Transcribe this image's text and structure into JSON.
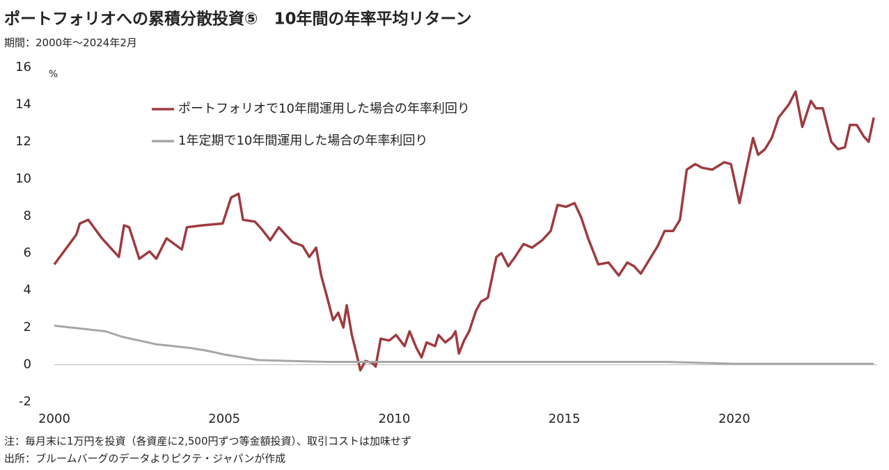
{
  "chart_data": {
    "type": "line",
    "title": "ポートフォリオへの累積分散投資⑤　10年間の年率平均リターン",
    "subtitle": "期間：2000年～2024年2月",
    "y_unit": "%",
    "notes": [
      "注：毎月末に1万円を投資（各資産に2,500円ずつ等金額投資）、取引コストは加味せず",
      "出所：ブルームバーグのデータよりピクテ・ジャパンが作成"
    ],
    "xlim": [
      2000,
      2024.2
    ],
    "xticks": [
      2000,
      2005,
      2010,
      2015,
      2020
    ],
    "ylim": [
      -2,
      16
    ],
    "yticks": [
      -2,
      0,
      2,
      4,
      6,
      8,
      10,
      12,
      14,
      16
    ],
    "negative_tick_color": "#e00000",
    "grid": false,
    "legend": "upper-left",
    "series": [
      {
        "name": "ポートフォリオで10年間運用した場合の年率利回り",
        "color": "#9e3a3f",
        "x": [
          2000,
          2000.65,
          2000.75,
          2001.0,
          2001.4,
          2001.9,
          2002.05,
          2002.2,
          2002.5,
          2002.8,
          2003.0,
          2003.3,
          2003.75,
          2003.9,
          2004.35,
          2004.95,
          2005.2,
          2005.42,
          2005.55,
          2005.9,
          2006.1,
          2006.35,
          2006.6,
          2007.0,
          2007.3,
          2007.5,
          2007.7,
          2007.85,
          2008.0,
          2008.2,
          2008.35,
          2008.5,
          2008.6,
          2008.75,
          2008.9,
          2009.0,
          2009.15,
          2009.35,
          2009.45,
          2009.6,
          2009.85,
          2010.05,
          2010.3,
          2010.45,
          2010.65,
          2010.8,
          2010.95,
          2011.2,
          2011.3,
          2011.5,
          2011.7,
          2011.8,
          2011.9,
          2012.05,
          2012.2,
          2012.4,
          2012.55,
          2012.75,
          2013.0,
          2013.15,
          2013.35,
          2013.55,
          2013.8,
          2014.05,
          2014.35,
          2014.6,
          2014.8,
          2015.05,
          2015.3,
          2015.5,
          2015.7,
          2016.0,
          2016.3,
          2016.6,
          2016.85,
          2017.05,
          2017.25,
          2017.55,
          2017.75,
          2017.95,
          2018.2,
          2018.4,
          2018.6,
          2018.85,
          2019.05,
          2019.35,
          2019.7,
          2019.9,
          2020.15,
          2020.35,
          2020.55,
          2020.7,
          2020.9,
          2021.1,
          2021.3,
          2021.6,
          2021.8,
          2022.0,
          2022.25,
          2022.4,
          2022.6,
          2022.85,
          2023.05,
          2023.25,
          2023.4,
          2023.6,
          2023.8,
          2023.95,
          2024.1
        ],
        "values": [
          5.4,
          7.0,
          7.6,
          7.8,
          6.8,
          5.8,
          7.5,
          7.4,
          5.7,
          6.1,
          5.7,
          6.8,
          6.2,
          7.4,
          7.5,
          7.6,
          9.0,
          9.2,
          7.8,
          7.7,
          7.3,
          6.7,
          7.4,
          6.6,
          6.4,
          5.8,
          6.3,
          4.8,
          3.8,
          2.4,
          2.8,
          2.0,
          3.2,
          1.6,
          0.5,
          -0.3,
          0.2,
          0.1,
          -0.1,
          1.4,
          1.3,
          1.6,
          1.0,
          1.8,
          0.9,
          0.4,
          1.2,
          1.0,
          1.6,
          1.2,
          1.5,
          1.8,
          0.6,
          1.3,
          1.8,
          2.9,
          3.4,
          3.6,
          5.8,
          6.0,
          5.3,
          5.8,
          6.5,
          6.3,
          6.7,
          7.2,
          8.6,
          8.5,
          8.7,
          7.9,
          6.8,
          5.4,
          5.5,
          4.8,
          5.5,
          5.3,
          4.9,
          5.8,
          6.4,
          7.2,
          7.2,
          7.8,
          10.5,
          10.8,
          10.6,
          10.5,
          10.9,
          10.8,
          8.7,
          10.5,
          12.2,
          11.3,
          11.6,
          12.2,
          13.3,
          14.0,
          14.7,
          12.8,
          14.2,
          13.8,
          13.8,
          12.0,
          11.6,
          11.7,
          12.9,
          12.9,
          12.3,
          12.0,
          13.3
        ]
      },
      {
        "name": "1年定期で10年間運用した場合の年率利回り",
        "color": "#a6a6a6",
        "x": [
          2000,
          2000.5,
          2001.0,
          2001.5,
          2002.0,
          2002.5,
          2003.0,
          2003.5,
          2004.0,
          2004.5,
          2005.0,
          2005.5,
          2006.0,
          2007.0,
          2008.0,
          2010.0,
          2015.0,
          2018.0,
          2019.0,
          2020.0,
          2023.0,
          2024.1
        ],
        "values": [
          2.1,
          2.0,
          1.9,
          1.8,
          1.5,
          1.3,
          1.1,
          1.0,
          0.9,
          0.75,
          0.55,
          0.4,
          0.25,
          0.2,
          0.15,
          0.15,
          0.15,
          0.15,
          0.1,
          0.05,
          0.05,
          0.05
        ]
      }
    ]
  }
}
